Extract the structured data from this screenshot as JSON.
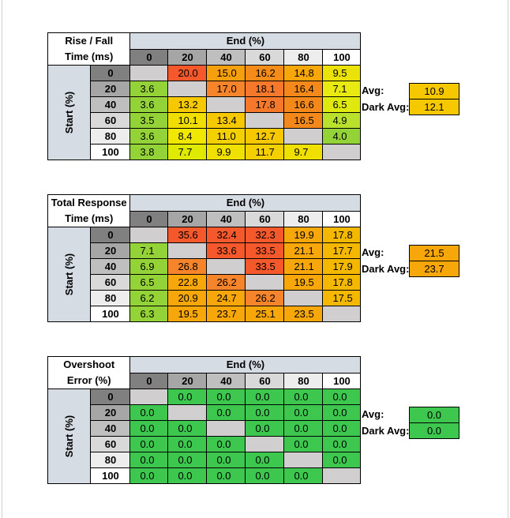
{
  "col_headers": [
    "0",
    "20",
    "40",
    "60",
    "80",
    "100"
  ],
  "row_headers": [
    "0",
    "20",
    "40",
    "60",
    "80",
    "100"
  ],
  "header_colors": [
    "#808080",
    "#a6a6a6",
    "#bfbfbf",
    "#d9d9d9",
    "#ededed",
    "#ffffff"
  ],
  "tables": [
    {
      "title_line1": "Rise / Fall",
      "title_line2": "Time (ms)",
      "end_label": "End (%)",
      "start_label": "Start (%)",
      "cells": [
        [
          null,
          "20.0",
          "15.0",
          "16.2",
          "14.8",
          "9.5"
        ],
        [
          "3.6",
          null,
          "17.0",
          "18.1",
          "16.4",
          "7.1"
        ],
        [
          "3.6",
          "13.2",
          null,
          "17.8",
          "16.6",
          "6.5"
        ],
        [
          "3.5",
          "10.1",
          "13.4",
          null,
          "16.5",
          "4.9"
        ],
        [
          "3.6",
          "8.4",
          "11.0",
          "12.7",
          null,
          "4.0"
        ],
        [
          "3.8",
          "7.7",
          "9.9",
          "11.7",
          "9.7",
          null
        ]
      ],
      "colors": [
        [
          "#d0cece",
          "#f4582b",
          "#f69f0c",
          "#f58c1a",
          "#f7a70a",
          "#ebe20a"
        ],
        [
          "#93d338",
          "#d0cece",
          "#f5842a",
          "#f6782a",
          "#f4881a",
          "#e9ea11"
        ],
        [
          "#93d338",
          "#f5c800",
          "#d0cece",
          "#f6782a",
          "#f4881a",
          "#e0e90e"
        ],
        [
          "#93d338",
          "#f0de00",
          "#f5c800",
          "#d0cece",
          "#f4881a",
          "#b8e02c"
        ],
        [
          "#93d338",
          "#f0e800",
          "#f5d000",
          "#f5c800",
          "#d0cece",
          "#93d338"
        ],
        [
          "#93d338",
          "#e0ea00",
          "#f0e000",
          "#f5d000",
          "#f0e000",
          "#d0cece"
        ]
      ],
      "avg_label": "Avg:",
      "avg_value": "10.9",
      "avg_color": "#f5c800",
      "dark_avg_label": "Dark Avg:",
      "dark_avg_value": "12.1",
      "dark_avg_color": "#f5c800"
    },
    {
      "title_line1": "Total Response",
      "title_line2": "Time (ms)",
      "end_label": "End (%)",
      "start_label": "Start (%)",
      "cells": [
        [
          null,
          "35.6",
          "32.4",
          "32.3",
          "19.9",
          "17.8"
        ],
        [
          "7.1",
          null,
          "33.6",
          "33.5",
          "21.1",
          "17.7"
        ],
        [
          "6.9",
          "26.8",
          null,
          "33.5",
          "21.1",
          "17.9"
        ],
        [
          "6.5",
          "22.8",
          "26.2",
          null,
          "19.5",
          "17.8"
        ],
        [
          "6.2",
          "20.9",
          "24.7",
          "26.2",
          null,
          "17.5"
        ],
        [
          "6.3",
          "19.5",
          "23.7",
          "25.1",
          "23.5",
          null
        ]
      ],
      "colors": [
        [
          "#d0cece",
          "#f4582b",
          "#f4582b",
          "#f4582b",
          "#f7a70a",
          "#f5b800"
        ],
        [
          "#93d338",
          "#d0cece",
          "#f4582b",
          "#f4582b",
          "#f7a70a",
          "#f5b800"
        ],
        [
          "#93d338",
          "#f5842a",
          "#d0cece",
          "#f4582b",
          "#f7a70a",
          "#f5b800"
        ],
        [
          "#93d338",
          "#f7a70a",
          "#f5842a",
          "#d0cece",
          "#f7a70a",
          "#f5b800"
        ],
        [
          "#93d338",
          "#f7a70a",
          "#f7a70a",
          "#f5842a",
          "#d0cece",
          "#f5b800"
        ],
        [
          "#93d338",
          "#f7a70a",
          "#f7a70a",
          "#f7a70a",
          "#f7a70a",
          "#d0cece"
        ]
      ],
      "avg_label": "Avg:",
      "avg_value": "21.5",
      "avg_color": "#f7a70a",
      "dark_avg_label": "Dark Avg:",
      "dark_avg_value": "23.7",
      "dark_avg_color": "#f7a70a"
    },
    {
      "title_line1": "Overshoot",
      "title_line2": "Error (%)",
      "end_label": "End (%)",
      "start_label": "Start (%)",
      "cells": [
        [
          null,
          "0.0",
          "0.0",
          "0.0",
          "0.0",
          "0.0"
        ],
        [
          "0.0",
          null,
          "0.0",
          "0.0",
          "0.0",
          "0.0"
        ],
        [
          "0.0",
          "0.0",
          null,
          "0.0",
          "0.0",
          "0.0"
        ],
        [
          "0.0",
          "0.0",
          "0.0",
          null,
          "0.0",
          "0.0"
        ],
        [
          "0.0",
          "0.0",
          "0.0",
          "0.0",
          null,
          "0.0"
        ],
        [
          "0.0",
          "0.0",
          "0.0",
          "0.0",
          "0.0",
          null
        ]
      ],
      "colors": [
        [
          "#d0cece",
          "#3dc74f",
          "#3dc74f",
          "#3dc74f",
          "#3dc74f",
          "#3dc74f"
        ],
        [
          "#3dc74f",
          "#d0cece",
          "#3dc74f",
          "#3dc74f",
          "#3dc74f",
          "#3dc74f"
        ],
        [
          "#3dc74f",
          "#3dc74f",
          "#d0cece",
          "#3dc74f",
          "#3dc74f",
          "#3dc74f"
        ],
        [
          "#3dc74f",
          "#3dc74f",
          "#3dc74f",
          "#d0cece",
          "#3dc74f",
          "#3dc74f"
        ],
        [
          "#3dc74f",
          "#3dc74f",
          "#3dc74f",
          "#3dc74f",
          "#d0cece",
          "#3dc74f"
        ],
        [
          "#3dc74f",
          "#3dc74f",
          "#3dc74f",
          "#3dc74f",
          "#3dc74f",
          "#d0cece"
        ]
      ],
      "avg_label": "Avg:",
      "avg_value": "0.0",
      "avg_color": "#3dc74f",
      "dark_avg_label": "Dark Avg:",
      "dark_avg_value": "0.0",
      "dark_avg_color": "#3dc74f"
    }
  ]
}
